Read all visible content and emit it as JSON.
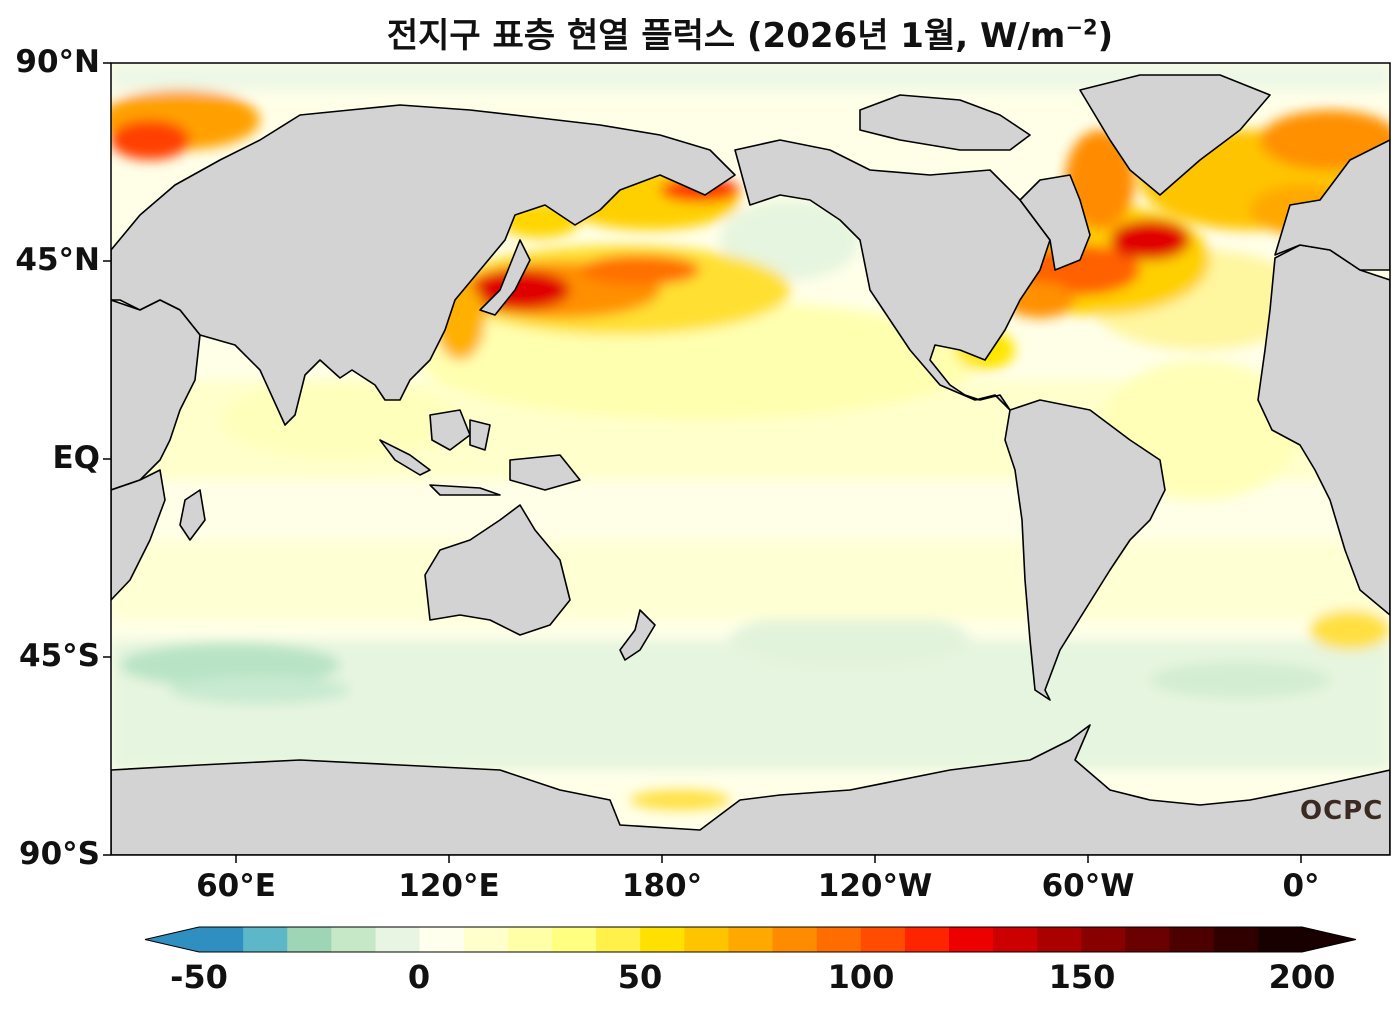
{
  "title": {
    "main": "전지구 표층 현열 플럭스 (2026년 1월, W/m",
    "sup": "−2",
    "close": ")"
  },
  "axes": {
    "y_labels": [
      "90°N",
      "45°N",
      "EQ",
      "45°S",
      "90°S"
    ],
    "x_labels": [
      "60°E",
      "120°E",
      "180°",
      "120°W",
      "60°W",
      "0°"
    ],
    "lon_range": [
      25,
      385
    ],
    "lat_range": [
      -90,
      90
    ]
  },
  "colorbar": {
    "tick_labels": [
      "-50",
      "0",
      "50",
      "100",
      "150",
      "200"
    ],
    "levels": [
      -50,
      200
    ],
    "step": 10,
    "extend": "both",
    "colors": [
      "#2f8fc0",
      "#5cb8c8",
      "#9dd5b5",
      "#c6e8c6",
      "#e8f5e2",
      "#ffffee",
      "#ffffcc",
      "#ffffa8",
      "#ffff80",
      "#fff04a",
      "#ffe000",
      "#ffc400",
      "#ffa800",
      "#ff8c00",
      "#ff6c00",
      "#ff4c00",
      "#ff2400",
      "#ec0000",
      "#cc0000",
      "#aa0000",
      "#880000",
      "#6a0000",
      "#4d0000",
      "#300000",
      "#180000"
    ]
  },
  "land_color": "#d3d3d3",
  "watermark": "OCPC"
}
